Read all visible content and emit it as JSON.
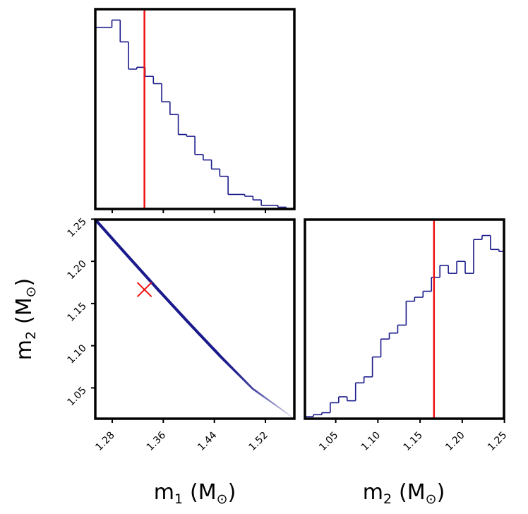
{
  "chart_data": [
    {
      "type": "histogram",
      "panel": "m1-marginal",
      "xlim": [
        1.2535,
        1.5653
      ],
      "bin_edges": [
        1.2535,
        1.2665,
        1.2795,
        1.2925,
        1.3055,
        1.3185,
        1.3315,
        1.3445,
        1.3575,
        1.3705,
        1.3835,
        1.3965,
        1.4095,
        1.4225,
        1.4355,
        1.4485,
        1.4615,
        1.4745,
        1.4875,
        1.5005,
        1.5135,
        1.5265,
        1.5395,
        1.5525
      ],
      "counts": [
        100,
        100,
        104,
        92,
        77,
        78,
        73,
        69,
        59,
        52,
        41,
        40,
        30,
        27,
        22,
        18,
        8,
        8,
        7,
        5,
        2,
        2,
        1
      ],
      "ylim": [
        0,
        110
      ],
      "truth": 1.3305,
      "series_color": "#1a1a8c",
      "truth_color": "#ee1111",
      "xticks": [
        1.28,
        1.36,
        1.44,
        1.52
      ]
    },
    {
      "type": "scatter",
      "panel": "m1-m2-joint",
      "xlim": [
        1.2535,
        1.5653
      ],
      "ylim": [
        1.0135,
        1.2495
      ],
      "curve_x": [
        1.2535,
        1.3,
        1.35,
        1.4,
        1.45,
        1.5,
        1.5517,
        1.5653
      ],
      "curve_y": [
        1.2495,
        1.21,
        1.168,
        1.127,
        1.087,
        1.049,
        1.021,
        1.013
      ],
      "dense_until_x": 1.44,
      "truth": {
        "x": 1.3305,
        "y": 1.1665
      },
      "xticks": [
        1.28,
        1.36,
        1.44,
        1.52
      ],
      "yticks": [
        1.05,
        1.1,
        1.15,
        1.2,
        1.25
      ],
      "xlabel": "m",
      "xlabel_sub": "1",
      "ylabel": "m",
      "ylabel_sub": "2",
      "unit_prefix": "(M",
      "unit_sub": "⊙",
      "unit_suffix": ")"
    },
    {
      "type": "histogram",
      "panel": "m2-marginal",
      "xlim": [
        1.0135,
        1.2495
      ],
      "bin_edges": [
        1.0135,
        1.0235,
        1.0335,
        1.0435,
        1.0535,
        1.0635,
        1.0735,
        1.0835,
        1.0935,
        1.1035,
        1.1135,
        1.1235,
        1.1335,
        1.1435,
        1.1535,
        1.1635,
        1.1735,
        1.1835,
        1.1935,
        1.2035,
        1.2135,
        1.2235,
        1.2335,
        1.2435,
        1.2495
      ],
      "counts": [
        1,
        2,
        3,
        8,
        11,
        9,
        18,
        21,
        31,
        40,
        43,
        47,
        59,
        61,
        64,
        71,
        77,
        73,
        79,
        73,
        90,
        92,
        85,
        84
      ],
      "ylim": [
        0,
        100
      ],
      "truth": 1.1665,
      "xticks": [
        1.05,
        1.1,
        1.15,
        1.2,
        1.25
      ],
      "xlabel": "m",
      "xlabel_sub": "2",
      "unit_prefix": "(M",
      "unit_sub": "⊙",
      "unit_suffix": ")"
    }
  ]
}
